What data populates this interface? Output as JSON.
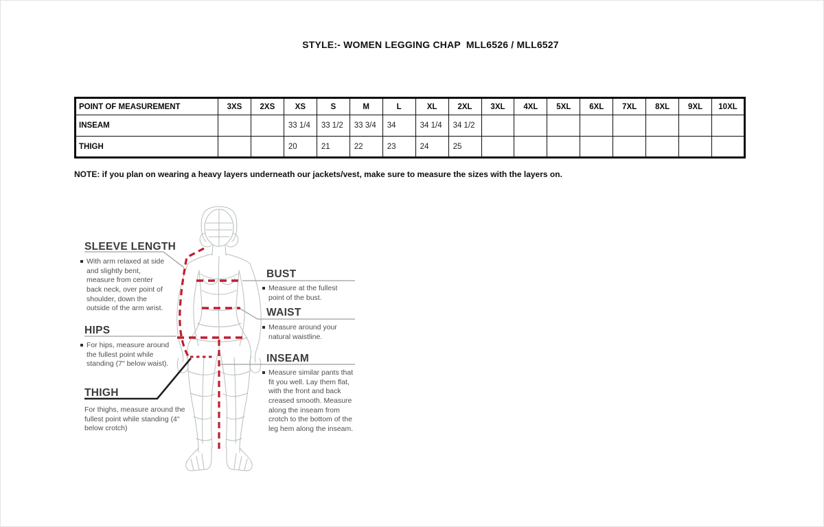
{
  "page": {
    "title": "STYLE:- WOMEN LEGGING CHAP  MLL6526 / MLL6527"
  },
  "table": {
    "headers": [
      "POINT OF MEASUREMENT",
      "3XS",
      "2XS",
      "XS",
      "S",
      "M",
      "L",
      "XL",
      "2XL",
      "3XL",
      "4XL",
      "5XL",
      "6XL",
      "7XL",
      "8XL",
      "9XL",
      "10XL"
    ],
    "rows": [
      {
        "label": "INSEAM",
        "values": [
          "",
          "",
          "33 1/4",
          "33 1/2",
          "33 3/4",
          "34",
          "34 1/4",
          "34 1/2",
          "",
          "",
          "",
          "",
          "",
          "",
          "",
          ""
        ]
      },
      {
        "label": "THIGH",
        "values": [
          "",
          "",
          "20",
          "21",
          "22",
          "23",
          "24",
          "25",
          "",
          "",
          "",
          "",
          "",
          "",
          "",
          ""
        ]
      }
    ]
  },
  "note": "NOTE: if you plan on wearing a heavy layers underneath our jackets/vest, make sure to measure the sizes with the layers on.",
  "diagram": {
    "figure": "woman-body-wireframe",
    "measure_line_color": "#bf1e2e",
    "pointer_line_color": "#9b9fa1",
    "sections": {
      "sleeve_length": {
        "title": "SLEEVE LENGTH",
        "desc": "With arm relaxed at side and slightly bent, measure from center back neck, over point of shoulder, down the outside of the arm wrist."
      },
      "hips": {
        "title": "HIPS",
        "desc": "For hips, measure around the fullest point while standing (7\" below waist)."
      },
      "thigh": {
        "title": "THIGH",
        "desc": "For thighs, measure around the fullest point while standing (4\" below crotch)"
      },
      "bust": {
        "title": "BUST",
        "desc": "Measure at the fullest point of the bust."
      },
      "waist": {
        "title": "WAIST",
        "desc": "Measure around your natural waistline."
      },
      "inseam": {
        "title": "INSEAM",
        "desc": "Measure similar pants that fit you well. Lay them flat, with the front and back creased smooth. Measure along the inseam from crotch to the bottom of the leg hem along the inseam."
      }
    }
  }
}
